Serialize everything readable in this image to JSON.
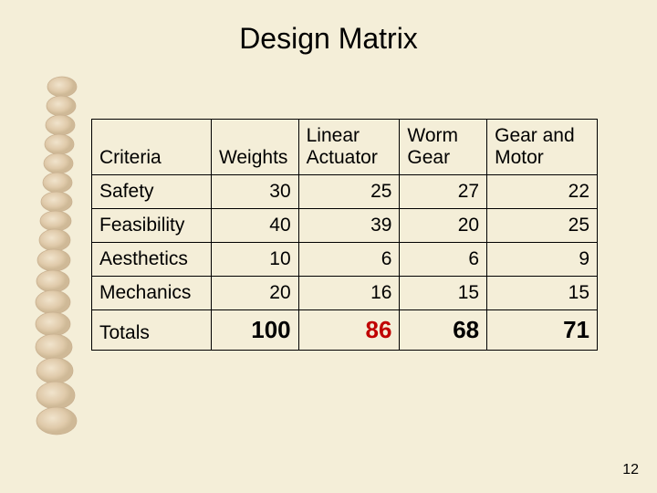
{
  "title": "Design Matrix",
  "page_number": "12",
  "table": {
    "columns": [
      "Criteria",
      "Weights",
      "Linear Actuator",
      "Worm Gear",
      "Gear and Motor"
    ],
    "rows": [
      {
        "label": "Safety",
        "weights": "30",
        "a": "25",
        "b": "27",
        "c": "22"
      },
      {
        "label": "Feasibility",
        "weights": "40",
        "a": "39",
        "b": "20",
        "c": "25"
      },
      {
        "label": "Aesthetics",
        "weights": "10",
        "a": "6",
        "b": "6",
        "c": "9"
      },
      {
        "label": "Mechanics",
        "weights": "20",
        "a": "16",
        "b": "15",
        "c": "15"
      }
    ],
    "totals": {
      "label": "Totals",
      "weights": "100",
      "a": "86",
      "b": "68",
      "c": "71"
    },
    "highlight_col": "a"
  },
  "colors": {
    "background": "#f4eed8",
    "text": "#000000",
    "highlight": "#c00000",
    "border": "#000000",
    "spine_light": "#e8d4b8",
    "spine_mid": "#d4b896",
    "spine_dark": "#b89874"
  }
}
